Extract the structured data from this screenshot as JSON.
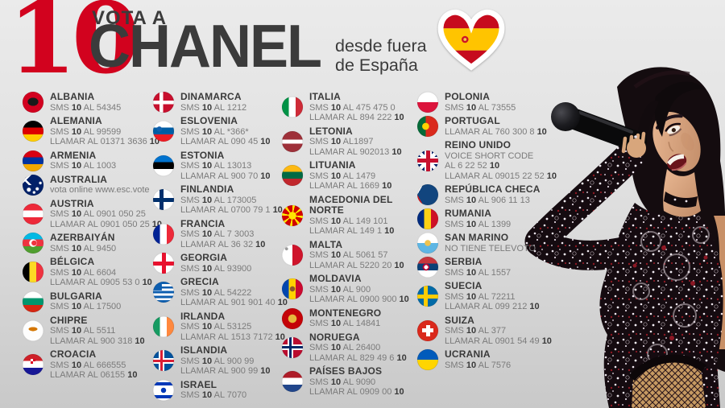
{
  "header": {
    "score": "10",
    "title_top": "VOTA A",
    "title_main": "CHANEL",
    "subtitle_line1": "desde fuera",
    "subtitle_line2": "de España",
    "heart_icon": "eurovision-spain-flag-heart",
    "accent_red": "#d2021e",
    "text_dark": "#3b3b3b",
    "text_gray": "#7b7b7b"
  },
  "photo": {
    "description_icon": "chanel-singer-photo"
  },
  "columns": [
    [
      {
        "name": "ALBANIA",
        "flag": "radial-gradient(ellipse 42% 32% at 50% 48%,#1a1a1a 0 60%,transparent 62%),#d2001f",
        "lines": [
          "SMS **10** AL 54345"
        ]
      },
      {
        "name": "ALEMANIA",
        "flag": "linear-gradient(#000 33%,#dd0000 33% 66%,#ffce00 66%)",
        "lines": [
          "SMS **10** AL 99599",
          "LLAMAR AL 01371 3636 **10**"
        ]
      },
      {
        "name": "ARMENIA",
        "flag": "linear-gradient(#d90012 33%,#0033a0 33% 66%,#f2a800 66%)",
        "lines": [
          "SMS **10** AL 1003"
        ]
      },
      {
        "name": "AUSTRALIA",
        "flag": "radial-gradient(circle at 70% 68%,#fff 0 1.5px,transparent 2.5px),radial-gradient(circle at 55% 85%,#fff 0 1.2px,transparent 2.2px),radial-gradient(circle at 85% 40%,#fff 0 1.2px,transparent 2.2px),radial-gradient(circle at 30% 72%,#fff 0 2px,transparent 3px),linear-gradient(45deg,transparent 30%,#fff 30% 44%,transparent 44%) 0 0/50% 50% no-repeat,linear-gradient(135deg,transparent 30%,#fff 30% 44%,transparent 44%) 0 0/50% 50% no-repeat,#012169",
        "lines": [
          "vota online www.esc.vote"
        ]
      },
      {
        "name": "AUSTRIA",
        "flag": "linear-gradient(#ed2939 33%,#fff 33% 66%,#ed2939 66%)",
        "lines": [
          "SMS **10** AL 0901 050 25",
          "LLAMAR AL 0901 050 25 **10**"
        ]
      },
      {
        "name": "AZERBAIYÁN",
        "flag": "radial-gradient(circle at 55% 50%,#ef3340 0 3px,transparent 3.4px),radial-gradient(circle at 50% 50%,#fff 0 4.5px,transparent 5px),linear-gradient(#00b9e4 33%,#ef3340 33% 66%,#509e2f 66%)",
        "lines": [
          "SMS **10** AL 9450"
        ]
      },
      {
        "name": "BÉLGICA",
        "flag": "linear-gradient(90deg,#000 33%,#fdda24 33% 66%,#ef3340 66%)",
        "lines": [
          "SMS **10** AL 6604",
          "LLAMAR AL 0905 53 0 **10**"
        ]
      },
      {
        "name": "BULGARIA",
        "flag": "linear-gradient(#fff 33%,#00966e 33% 66%,#d62612 66%)",
        "lines": [
          "SMS **10** AL 17500"
        ]
      },
      {
        "name": "CHIPRE",
        "flag": "radial-gradient(ellipse 9px 4px at 50% 42%,#d47600 0 60%,transparent 62%),#fdfdfd",
        "lines": [
          "SMS **10** AL 5511",
          "LLAMAR AL 900 318 **10**"
        ]
      },
      {
        "name": "CROACIA",
        "flag": "repeating-conic-gradient(#d02 0 90deg,#fff 90deg 180deg) 50% 30%/24% 24% no-repeat,linear-gradient(#ce2028 33%,#fff 33% 66%,#171796 66%)",
        "lines": [
          "SMS **10** AL 666555",
          "LLAMAR AL 06155 **10**"
        ]
      }
    ],
    [
      {
        "name": "DINAMARCA",
        "flag": "linear-gradient(#fff,#fff) 8px 0/4.5px 100% no-repeat,linear-gradient(#fff,#fff) 0 50%/100% 4.5px no-repeat,#c8102e",
        "lines": [
          "SMS **10** AL 1212"
        ]
      },
      {
        "name": "ESLOVENIA",
        "flag": "radial-gradient(circle at 30% 40%,#1160ad 0 3px,transparent 3.5px),linear-gradient(#fff 33%,#005da4 33% 66%,#ed1c24 66%)",
        "lines": [
          "SMS **10** AL *366*",
          "LLAMAR AL 090 45 **10**"
        ]
      },
      {
        "name": "ESTONIA",
        "flag": "linear-gradient(#0072ce 33%,#000 33% 66%,#fff 66%)",
        "lines": [
          "SMS **10** AL 13013",
          "LLAMAR AL 900 70 **10**"
        ]
      },
      {
        "name": "FINLANDIA",
        "flag": "linear-gradient(#002f6c,#002f6c) 8px 0/5px 100% no-repeat,linear-gradient(#002f6c,#002f6c) 0 50%/100% 5px no-repeat,#fff",
        "lines": [
          "SMS **10** AL 173005",
          "LLAMAR AL 0700 79 1 **10**"
        ]
      },
      {
        "name": "FRANCIA",
        "flag": "linear-gradient(90deg,#002395 33%,#fff 33% 66%,#ed2939 66%)",
        "lines": [
          "SMS **10** AL 7 3003",
          "LLAMAR AL 36 32 **10**"
        ]
      },
      {
        "name": "GEORGIA",
        "flag": "linear-gradient(#e8112d,#e8112d) 50% 0/5px 100% no-repeat,linear-gradient(#e8112d,#e8112d) 0 50%/100% 5px no-repeat,#fff",
        "lines": [
          "SMS **10** AL 93900"
        ]
      },
      {
        "name": "GRECIA",
        "flag": "linear-gradient(#0d5eaf,#0d5eaf) 0 0/42% 42% no-repeat,repeating-linear-gradient(#0d5eaf 0 2.9px,#fff 2.9px 5.8px)",
        "lines": [
          "SMS **10** AL 54222",
          "LLAMAR AL 901 901 40 **10**"
        ]
      },
      {
        "name": "IRLANDA",
        "flag": "linear-gradient(90deg,#169b62 33%,#fff 33% 66%,#ff883e 66%)",
        "lines": [
          "SMS **10** AL 53125",
          "LLAMAR AL 1513 7172 **10**"
        ]
      },
      {
        "name": "ISLANDIA",
        "flag": "linear-gradient(#dc1e35,#dc1e35) 9px 0/3px 100% no-repeat,linear-gradient(#dc1e35,#dc1e35) 0 50%/100% 3px no-repeat,linear-gradient(#fff,#fff) 7px 0/7px 100% no-repeat,linear-gradient(#fff,#fff) 0 50%/100% 7px no-repeat,#02529c",
        "lines": [
          "SMS **10** AL 900 99",
          "LLAMAR AL 900 99 **10**"
        ]
      },
      {
        "name": "ISRAEL",
        "flag": "radial-gradient(circle at 50% 50%,#0038b8 0 3px,transparent 3.4px),linear-gradient(#0038b8,#0038b8) 0 3px/100% 4px no-repeat,linear-gradient(#0038b8,#0038b8) 0 19px/100% 4px no-repeat,#fff",
        "lines": [
          "SMS **10** AL 7070"
        ]
      }
    ],
    [
      {
        "name": "ITALIA",
        "flag": "linear-gradient(90deg,#009246 33%,#fff 33% 66%,#ce2b37 66%)",
        "lines": [
          "SMS **10** AL 475 475 0",
          "LLAMAR AL 894 222 **10**"
        ]
      },
      {
        "name": "LETONIA",
        "flag": "linear-gradient(#9e3039 40%,#fff 40% 60%,#9e3039 60%)",
        "lines": [
          "SMS **10** AL1897",
          "LLAMAR AL 902013 **10**"
        ]
      },
      {
        "name": "LITUANIA",
        "flag": "linear-gradient(#fdb913 33%,#006a44 33% 66%,#c1272d 66%)",
        "lines": [
          "SMS **10** AL 1479",
          "LLAMAR AL 1669 **10**"
        ]
      },
      {
        "name": "MACEDONIA DEL NORTE",
        "flag": "radial-gradient(circle,#ffe600 0 4.5px,transparent 5px),repeating-conic-gradient(#ffe600 0 14deg,#d20000 14deg 45deg)",
        "lines": [
          "SMS **10** AL 149 101",
          "LLAMAR AL 149 1 **10**"
        ]
      },
      {
        "name": "MALTA",
        "flag": "radial-gradient(circle at 22% 20%,#9a9a9a 0 1.6px,transparent 2.2px),linear-gradient(90deg,#fff 0 50%,#cf142b 50%)",
        "lines": [
          "SMS **10** AL 5061 57",
          "LLAMAR AL 5220 20 **10**"
        ]
      },
      {
        "name": "MOLDAVIA",
        "flag": "radial-gradient(circle at 50% 50%,#8a5a2b 0 3px,transparent 3.5px),linear-gradient(90deg,#0046ae 33%,#ffd200 33% 66%,#cc092f 66%)",
        "lines": [
          "SMS **10** AL 900",
          "LLAMAR AL 0900 900 **10**"
        ]
      },
      {
        "name": "MONTENEGRO",
        "flag": "radial-gradient(circle at 50% 50%,#e6b83c 0 5px,transparent 5.5px),#c40308",
        "lines": [
          "SMS **10** AL 14841"
        ]
      },
      {
        "name": "NORUEGA",
        "flag": "linear-gradient(#002868,#002868) 9px 0/3px 100% no-repeat,linear-gradient(#002868,#002868) 0 50%/100% 3px no-repeat,linear-gradient(#fff,#fff) 7px 0/7px 100% no-repeat,linear-gradient(#fff,#fff) 0 50%/100% 7px no-repeat,#ba0c2f",
        "lines": [
          "SMS **10** AL 26400",
          "LLAMAR AL 829 49 6 **10**"
        ]
      },
      {
        "name": "PAÍSES BAJOS",
        "flag": "linear-gradient(#ae1c28 33%,#fff 33% 66%,#21468b 66%)",
        "lines": [
          "SMS **10** AL 9090",
          "LLAMAR AL 0909 00 **10**"
        ]
      }
    ],
    [
      {
        "name": "POLONIA",
        "flag": "linear-gradient(#fff 50%,#dc143c 50%)",
        "lines": [
          "SMS **10** AL 73555"
        ]
      },
      {
        "name": "PORTUGAL",
        "flag": "radial-gradient(circle at 40% 50%,#ffd200 0 4px,transparent 4.6px),linear-gradient(90deg,#046a38 0 40%,#da291c 40%)",
        "lines": [
          "LLAMAR AL 760 300 8 **10**"
        ]
      },
      {
        "name": "REINO UNIDO",
        "flag": "linear-gradient(#c8102e,#c8102e) 50% 0/5px 100% no-repeat,linear-gradient(#c8102e,#c8102e) 0 50%/100% 5px no-repeat,linear-gradient(45deg,transparent 44%,#fff 44% 56%,transparent 56%),linear-gradient(135deg,transparent 44%,#fff 44% 56%,transparent 56%),linear-gradient(#fff,#fff) 50% 0/9px 100% no-repeat,linear-gradient(#fff,#fff) 0 50%/100% 9px no-repeat,#012169",
        "lines": [
          "VOICE SHORT CODE",
          "AL 6 22 52 **10**",
          "LLAMAR AL 09015 22 52 **10**"
        ]
      },
      {
        "name": "REPÚBLICA CHECA",
        "flag": "conic-gradient(from 30deg at 0% 50%,#11457e 0 120deg,transparent 120deg),linear-gradient(#fff 50%,#d7141a 50%)",
        "lines": [
          "SMS **10** AL 906 11 13"
        ]
      },
      {
        "name": "RUMANIA",
        "flag": "linear-gradient(90deg,#002b7f 33%,#fcd116 33% 66%,#ce1126 66%)",
        "lines": [
          "SMS **10** AL 1399"
        ]
      },
      {
        "name": "SAN MARINO",
        "flag": "radial-gradient(circle at 50% 50%,#eec34f 0 3.5px,transparent 4px),linear-gradient(#fff 50%,#5eb6e4 50%)",
        "lines": [
          "NO TIENE TELEVOTO"
        ]
      },
      {
        "name": "SERBIA",
        "flag": "radial-gradient(circle at 42% 50%,#fff 0 2.5px,#b03 2.5px 4px,transparent 4.5px),linear-gradient(#c6363c 33%,#0c4076 33% 66%,#fff 66%)",
        "lines": [
          "SMS **10** AL 1557"
        ]
      },
      {
        "name": "SUECIA",
        "flag": "linear-gradient(#fecc02,#fecc02) 8px 0/5px 100% no-repeat,linear-gradient(#fecc02,#fecc02) 0 50%/100% 5px no-repeat,#006aa7",
        "lines": [
          "SMS **10** AL 72211",
          "LLAMAR AL 099 212 **10**"
        ]
      },
      {
        "name": "SUIZA",
        "flag": "linear-gradient(#fff,#fff) 50% 50%/14px 5px no-repeat,linear-gradient(#fff,#fff) 50% 50%/5px 14px no-repeat,#da291c",
        "lines": [
          "SMS **10** AL 377",
          "LLAMAR AL 0901 54 49 **10**"
        ]
      },
      {
        "name": "UCRANIA",
        "flag": "linear-gradient(#005bbb 50%,#ffd500 50%)",
        "lines": [
          "SMS **10** AL 7576"
        ]
      }
    ]
  ]
}
